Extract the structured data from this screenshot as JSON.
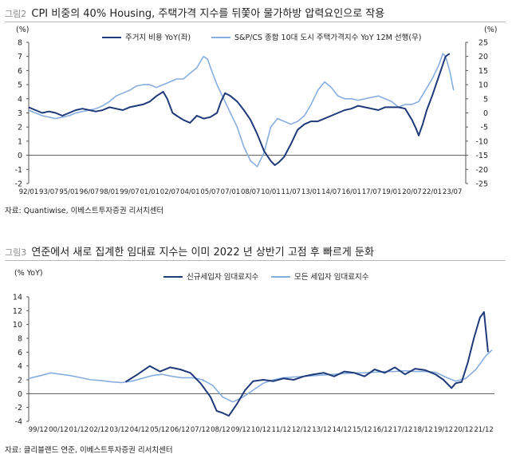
{
  "figure1": {
    "fig_no": "그림2",
    "title": "CPI 비중의 40% Housing, 주택가격 지수를 뒤쫓아 물가하방 압력요인으로 작용",
    "source": "자료: Quantiwise, 이베스트투자증권 리서치센터"
  },
  "figure2": {
    "fig_no": "그림3",
    "title": "연준에서 새로 집계한 임대료 지수는 이미 2022 년 상반기 고점 후 빠르게 둔화",
    "source": "자료: 클리블랜드 연준, 이베스트투자증권 리서치센터"
  },
  "chart_data": [
    {
      "type": "line",
      "left_unit": "(%)",
      "right_unit": "(%)",
      "ylim_left": [
        -2,
        8
      ],
      "ylim_right": [
        -25,
        25
      ],
      "yticks_left": [
        -2,
        -1,
        0,
        1,
        2,
        3,
        4,
        5,
        6,
        7,
        8
      ],
      "yticks_right": [
        -25,
        -20,
        -15,
        -10,
        -5,
        0,
        5,
        10,
        15,
        20,
        25
      ],
      "xlim": [
        1992.0,
        2024.5
      ],
      "xtick_labels": [
        "92/01",
        "93/07",
        "95/01",
        "96/07",
        "98/01",
        "99/07",
        "01/01",
        "02/07",
        "04/01",
        "05/07",
        "07/01",
        "08/07",
        "10/01",
        "11/07",
        "13/01",
        "14/07",
        "16/01",
        "17/07",
        "19/01",
        "20/07",
        "22/01",
        "23/07"
      ],
      "xtick_values": [
        1992.0,
        1993.5,
        1995.0,
        1996.5,
        1998.0,
        1999.5,
        2001.0,
        2002.5,
        2004.0,
        2005.5,
        2007.0,
        2008.5,
        2010.0,
        2011.5,
        2013.0,
        2014.5,
        2016.0,
        2017.5,
        2019.0,
        2020.5,
        2022.0,
        2023.5
      ],
      "legend_position": "top",
      "grid": false,
      "series": [
        {
          "name": "주거지 비용 YoY(좌)",
          "axis": "left",
          "color": "#1f3a7a",
          "x": [
            1992.0,
            1992.5,
            1993.0,
            1993.5,
            1994.0,
            1994.5,
            1995.0,
            1995.5,
            1996.0,
            1996.5,
            1997.0,
            1997.5,
            1998.0,
            1998.5,
            1999.0,
            1999.5,
            2000.0,
            2000.5,
            2001.0,
            2001.5,
            2002.0,
            2002.3,
            2002.7,
            2003.0,
            2003.5,
            2004.0,
            2004.5,
            2005.0,
            2005.5,
            2006.0,
            2006.3,
            2006.6,
            2007.0,
            2007.5,
            2008.0,
            2008.5,
            2009.0,
            2009.5,
            2010.0,
            2010.3,
            2010.6,
            2011.0,
            2011.5,
            2012.0,
            2012.5,
            2013.0,
            2013.5,
            2014.0,
            2014.5,
            2015.0,
            2015.5,
            2016.0,
            2016.5,
            2017.0,
            2017.5,
            2018.0,
            2018.5,
            2019.0,
            2019.5,
            2020.0,
            2020.5,
            2020.8,
            2021.0,
            2021.3,
            2021.6,
            2022.0,
            2022.5,
            2023.0,
            2023.3
          ],
          "values": [
            3.4,
            3.2,
            3.0,
            3.1,
            3.0,
            2.8,
            3.0,
            3.2,
            3.3,
            3.2,
            3.1,
            3.2,
            3.4,
            3.3,
            3.2,
            3.4,
            3.5,
            3.6,
            3.8,
            4.2,
            4.5,
            4.0,
            3.0,
            2.8,
            2.5,
            2.3,
            2.8,
            2.6,
            2.7,
            3.0,
            3.8,
            4.4,
            4.2,
            3.8,
            3.2,
            2.5,
            1.5,
            0.3,
            -0.4,
            -0.7,
            -0.5,
            -0.1,
            0.8,
            1.8,
            2.2,
            2.4,
            2.4,
            2.6,
            2.8,
            3.0,
            3.2,
            3.3,
            3.5,
            3.4,
            3.3,
            3.2,
            3.4,
            3.4,
            3.4,
            3.3,
            2.5,
            1.9,
            1.4,
            2.2,
            3.2,
            4.2,
            5.6,
            7.0,
            7.2
          ]
        },
        {
          "name": "S&P/CS 종합 10대 도시 주택가격지수 YoY 12M 선행(우)",
          "axis": "right",
          "color": "#86aee0",
          "x": [
            1992.0,
            1992.5,
            1993.0,
            1993.5,
            1994.0,
            1994.5,
            1995.0,
            1995.5,
            1996.0,
            1996.5,
            1997.0,
            1997.5,
            1998.0,
            1998.5,
            1999.0,
            1999.5,
            2000.0,
            2000.5,
            2001.0,
            2001.5,
            2002.0,
            2002.5,
            2003.0,
            2003.5,
            2004.0,
            2004.5,
            2005.0,
            2005.3,
            2005.6,
            2006.0,
            2006.5,
            2007.0,
            2007.5,
            2008.0,
            2008.5,
            2009.0,
            2009.5,
            2010.0,
            2010.5,
            2011.0,
            2011.5,
            2012.0,
            2012.5,
            2013.0,
            2013.5,
            2014.0,
            2014.5,
            2015.0,
            2015.5,
            2016.0,
            2016.5,
            2017.0,
            2017.5,
            2018.0,
            2018.5,
            2019.0,
            2019.5,
            2020.0,
            2020.5,
            2021.0,
            2021.5,
            2022.0,
            2022.5,
            2022.8,
            2023.0,
            2023.3,
            2023.6
          ],
          "values": [
            1,
            0,
            -1,
            -1.5,
            -2,
            -1.5,
            -1,
            0,
            0.5,
            1,
            1.5,
            2.5,
            4,
            6,
            7,
            8,
            9.5,
            10,
            10,
            9,
            10,
            11,
            12,
            12,
            14,
            16,
            20,
            19,
            15,
            10,
            5,
            0,
            -5,
            -12,
            -17,
            -19,
            -14,
            -5,
            -2,
            -3,
            -4,
            -3,
            -1,
            3,
            8,
            11,
            9,
            6,
            5,
            5,
            4.5,
            5,
            5.5,
            6,
            5,
            4,
            2,
            3,
            3,
            4,
            8,
            12,
            17,
            21,
            20,
            15,
            8
          ]
        }
      ]
    },
    {
      "type": "line",
      "left_unit": "(% YoY)",
      "ylim": [
        -4,
        14
      ],
      "yticks": [
        -4,
        -2,
        0,
        2,
        4,
        6,
        8,
        10,
        12,
        14
      ],
      "xlim": [
        1999.917,
        2022.917
      ],
      "xtick_labels": [
        "99/12",
        "00/12",
        "01/12",
        "02/12",
        "03/12",
        "04/12",
        "05/12",
        "06/12",
        "07/12",
        "08/12",
        "09/12",
        "10/12",
        "11/12",
        "12/12",
        "13/12",
        "14/12",
        "15/12",
        "16/12",
        "17/12",
        "18/12",
        "19/12",
        "20/12",
        "21/12"
      ],
      "xtick_values": [
        1999.917,
        2000.917,
        2001.917,
        2002.917,
        2003.917,
        2004.917,
        2005.917,
        2006.917,
        2007.917,
        2008.917,
        2009.917,
        2010.917,
        2011.917,
        2012.917,
        2013.917,
        2014.917,
        2015.917,
        2016.917,
        2017.917,
        2018.917,
        2019.917,
        2020.917,
        2021.917
      ],
      "legend_position": "top",
      "grid": false,
      "series": [
        {
          "name": "신규세입자 임대료지수",
          "color": "#1f3a7a",
          "x": [
            2004.7,
            2005.3,
            2005.9,
            2006.4,
            2006.9,
            2007.4,
            2007.9,
            2008.4,
            2008.9,
            2009.2,
            2009.5,
            2009.8,
            2010.2,
            2010.6,
            2011.0,
            2011.5,
            2012.0,
            2012.5,
            2013.0,
            2013.5,
            2014.0,
            2014.5,
            2015.0,
            2015.5,
            2016.0,
            2016.5,
            2017.0,
            2017.5,
            2018.0,
            2018.5,
            2019.0,
            2019.5,
            2020.0,
            2020.4,
            2020.8,
            2021.0,
            2021.3,
            2021.6,
            2021.9,
            2022.2,
            2022.4,
            2022.6
          ],
          "values": [
            1.7,
            2.8,
            4.0,
            3.2,
            3.8,
            3.5,
            3.0,
            1.5,
            -0.5,
            -2.5,
            -2.8,
            -3.2,
            -1.5,
            0.5,
            1.8,
            2.0,
            1.8,
            2.2,
            2.0,
            2.5,
            2.8,
            3.0,
            2.5,
            3.2,
            3.0,
            2.5,
            3.5,
            3.0,
            3.8,
            2.8,
            3.6,
            3.4,
            2.8,
            2.0,
            0.8,
            1.5,
            1.7,
            4.5,
            8.0,
            11.0,
            11.8,
            6.0
          ]
        },
        {
          "name": "모든 세입자 임대료지수",
          "color": "#86aee0",
          "x": [
            1999.917,
            2000.5,
            2001.0,
            2001.5,
            2002.0,
            2002.5,
            2003.0,
            2003.5,
            2004.0,
            2004.5,
            2005.0,
            2005.5,
            2006.0,
            2006.5,
            2007.0,
            2007.5,
            2008.0,
            2008.5,
            2009.0,
            2009.5,
            2010.0,
            2010.5,
            2011.0,
            2011.5,
            2012.0,
            2012.5,
            2013.0,
            2013.5,
            2014.0,
            2014.5,
            2015.0,
            2015.5,
            2016.0,
            2016.5,
            2017.0,
            2017.5,
            2018.0,
            2018.5,
            2019.0,
            2019.5,
            2020.0,
            2020.5,
            2021.0,
            2021.5,
            2022.0,
            2022.5,
            2022.8
          ],
          "values": [
            2.2,
            2.6,
            3.0,
            2.8,
            2.6,
            2.3,
            2.0,
            1.9,
            1.7,
            1.6,
            1.8,
            2.2,
            2.6,
            2.8,
            2.5,
            2.3,
            2.3,
            2.0,
            1.2,
            -0.5,
            -1.2,
            -0.5,
            0.5,
            1.5,
            2.0,
            2.3,
            2.4,
            2.5,
            2.6,
            2.7,
            2.8,
            2.9,
            3.0,
            3.0,
            3.1,
            3.2,
            3.2,
            3.3,
            3.2,
            3.2,
            3.1,
            2.4,
            1.8,
            2.2,
            3.5,
            5.5,
            6.3
          ]
        }
      ]
    }
  ]
}
